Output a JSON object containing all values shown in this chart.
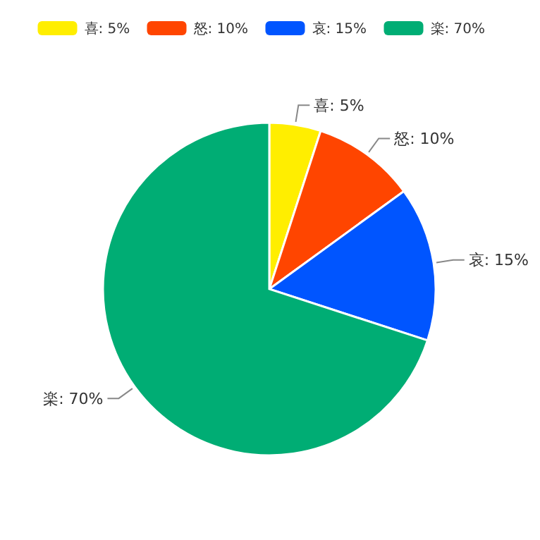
{
  "chart_data": {
    "type": "pie",
    "categories": [
      "喜",
      "怒",
      "哀",
      "楽"
    ],
    "values": [
      5,
      10,
      15,
      70
    ],
    "value_labels": [
      "5%",
      "10%",
      "15%",
      "70%"
    ],
    "colors": [
      "#ffee00",
      "#ff4500",
      "#0055ff",
      "#00ad74"
    ],
    "legend": "top"
  }
}
